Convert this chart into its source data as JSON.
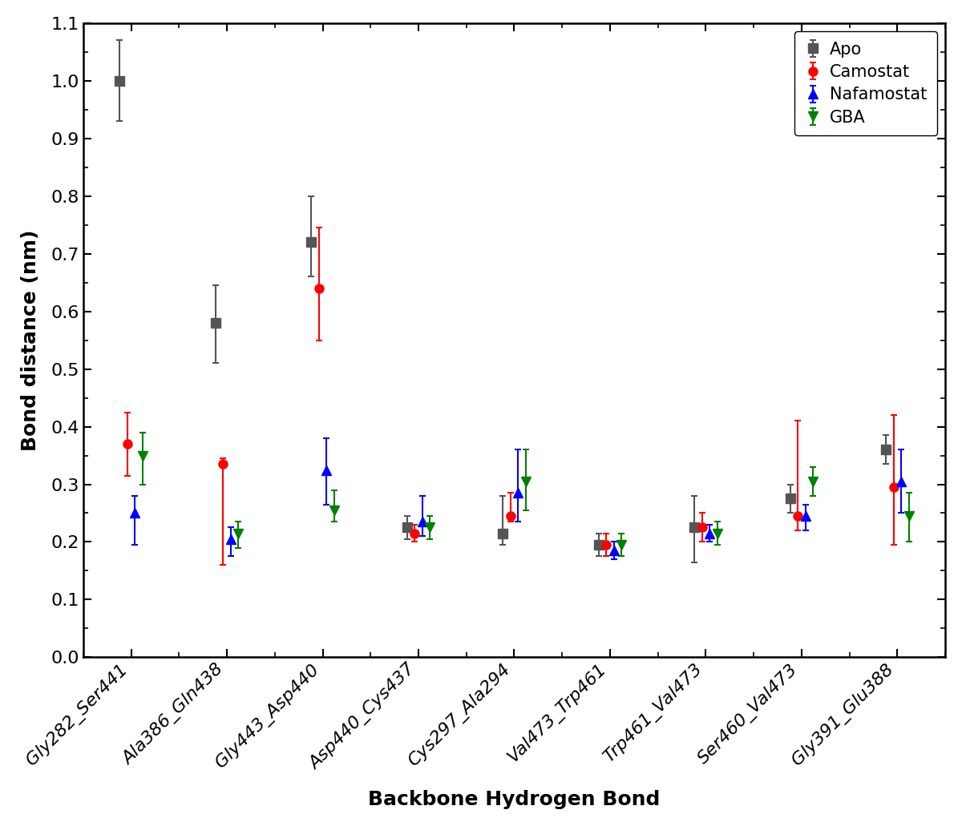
{
  "categories": [
    "Gly282_Ser441",
    "Ala386_Gln438",
    "Gly443_Asp440",
    "Asp440_Cys437",
    "Cys297_Ala294",
    "Val473_Trp461",
    "Trp461_Val473",
    "Ser460_Val473",
    "Gly391_Glu388"
  ],
  "series": {
    "Apo": {
      "color": "#555555",
      "marker": "s",
      "means": [
        1.0,
        0.58,
        0.72,
        0.225,
        0.215,
        0.195,
        0.225,
        0.275,
        0.36
      ],
      "err_low": [
        0.07,
        0.07,
        0.06,
        0.02,
        0.02,
        0.02,
        0.06,
        0.025,
        0.025
      ],
      "err_high": [
        0.07,
        0.065,
        0.08,
        0.02,
        0.065,
        0.02,
        0.055,
        0.025,
        0.025
      ]
    },
    "Camostat": {
      "color": "#ff0000",
      "marker": "o",
      "means": [
        0.37,
        0.335,
        0.64,
        0.215,
        0.245,
        0.195,
        0.225,
        0.245,
        0.295
      ],
      "err_low": [
        0.055,
        0.175,
        0.09,
        0.015,
        0.01,
        0.02,
        0.025,
        0.025,
        0.1
      ],
      "err_high": [
        0.055,
        0.01,
        0.105,
        0.015,
        0.04,
        0.02,
        0.025,
        0.165,
        0.125
      ]
    },
    "Nafamostat": {
      "color": "#0000ff",
      "marker": "^",
      "means": [
        0.25,
        0.205,
        0.325,
        0.235,
        0.285,
        0.185,
        0.215,
        0.245,
        0.305
      ],
      "err_low": [
        0.055,
        0.03,
        0.06,
        0.025,
        0.05,
        0.015,
        0.015,
        0.025,
        0.055
      ],
      "err_high": [
        0.03,
        0.02,
        0.055,
        0.045,
        0.075,
        0.015,
        0.015,
        0.02,
        0.055
      ]
    },
    "GBA": {
      "color": "#008000",
      "marker": "v",
      "means": [
        0.35,
        0.215,
        0.255,
        0.225,
        0.305,
        0.195,
        0.215,
        0.305,
        0.245
      ],
      "err_low": [
        0.05,
        0.025,
        0.02,
        0.02,
        0.05,
        0.02,
        0.02,
        0.025,
        0.045
      ],
      "err_high": [
        0.04,
        0.02,
        0.035,
        0.02,
        0.055,
        0.02,
        0.02,
        0.025,
        0.04
      ]
    }
  },
  "offsets": [
    -0.12,
    -0.04,
    0.04,
    0.12
  ],
  "xlabel": "Backbone Hydrogen Bond",
  "ylabel": "Bond distance (nm)",
  "ylim": [
    0.0,
    1.1
  ],
  "yticks": [
    0.0,
    0.1,
    0.2,
    0.3,
    0.4,
    0.5,
    0.6,
    0.7,
    0.8,
    0.9,
    1.0,
    1.1
  ],
  "legend_order": [
    "Apo",
    "Camostat",
    "Nafamostat",
    "GBA"
  ],
  "capsize": 3,
  "markersize": 8,
  "elinewidth": 1.5,
  "capthick": 1.5
}
